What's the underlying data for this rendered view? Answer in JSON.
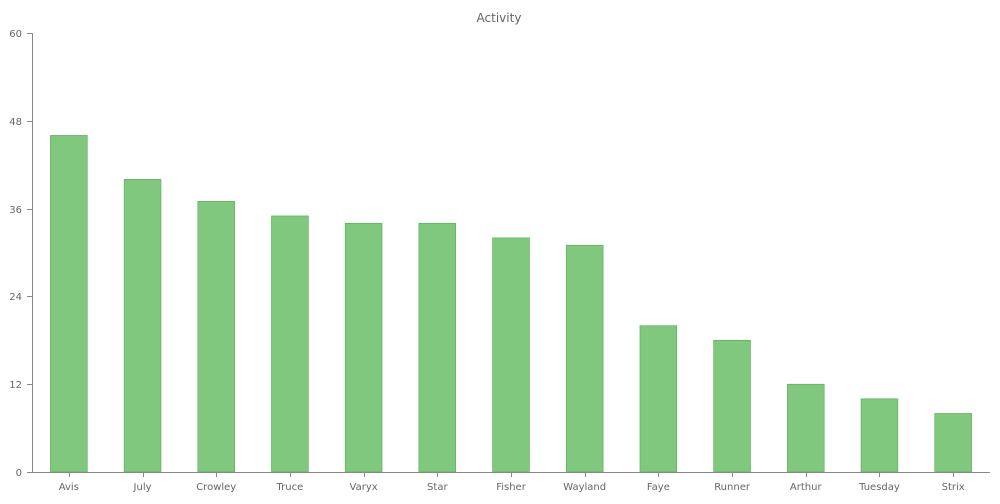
{
  "chart_data": {
    "type": "bar",
    "title": "Activity",
    "xlabel": "",
    "ylabel": "",
    "categories": [
      "Avis",
      "July",
      "Crowley",
      "Truce",
      "Varyx",
      "Star",
      "Fisher",
      "Wayland",
      "Faye",
      "Runner",
      "Arthur",
      "Tuesday",
      "Strix"
    ],
    "values": [
      46,
      40,
      37,
      35,
      34,
      34,
      32,
      31,
      20,
      18,
      12,
      10,
      8
    ],
    "ylim": [
      0,
      60
    ],
    "yticks": [
      0,
      12,
      24,
      36,
      48,
      60
    ],
    "grid": false,
    "legend": "none",
    "bar_color": "#80c87e",
    "bar_edge_color": "#5aa858"
  }
}
